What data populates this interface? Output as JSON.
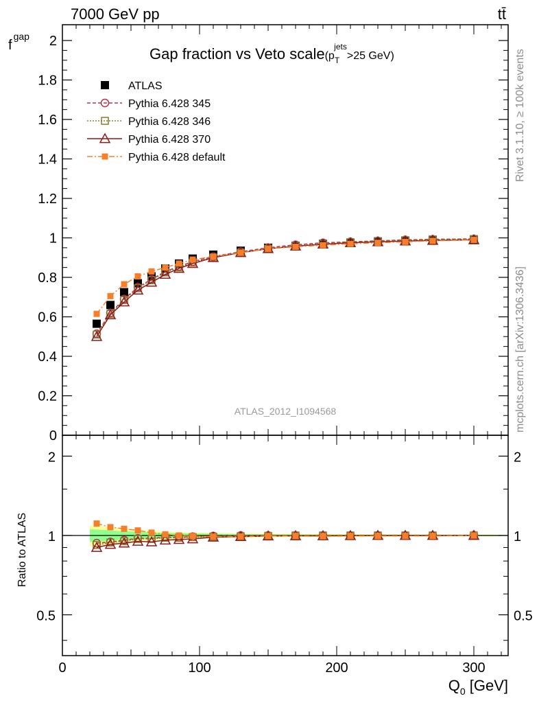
{
  "header": {
    "energy_label": "7000 GeV pp",
    "process_label": "tt̄",
    "rivet_label": "Rivet 3.1.10, ≥ 100k events",
    "mcplots_label": "mcplots.cern.ch [arXiv:1306.3436]",
    "analysis_label": "ATLAS_2012_I1094568"
  },
  "colors": {
    "atlas": "#000000",
    "p345": "#b2314b",
    "p346": "#8b7a2a",
    "p370": "#8b1a1a",
    "pdefault": "#f57f2b",
    "band_inner": "#8fff8f",
    "band_outer": "#ffff99"
  },
  "chart_data": [
    {
      "type": "scatter",
      "title": "Gap fraction vs Veto scale",
      "title_suffix": "(p",
      "title_sub": "T",
      "title_sup": "jets",
      "title_tail": ">25 GeV)",
      "ylabel": "f",
      "ylabel_sub": "gap",
      "xlim": [
        0,
        325
      ],
      "ylim": [
        0,
        2.08
      ],
      "yticks": [
        0,
        0.2,
        0.4,
        0.6,
        0.8,
        1,
        1.2,
        1.4,
        1.6,
        1.8,
        2
      ],
      "ytick_labels": [
        "0",
        "0.2",
        "0.4",
        "0.6",
        "0.8",
        "1",
        "1.2",
        "1.4",
        "1.6",
        "1.8",
        "2"
      ],
      "legend": "top-left",
      "x": [
        25,
        35,
        45,
        55,
        65,
        75,
        85,
        95,
        110,
        130,
        150,
        170,
        190,
        210,
        230,
        250,
        270,
        300
      ],
      "series": [
        {
          "name": "ATLAS",
          "key": "atlas",
          "marker": "square-filled",
          "values": [
            0.565,
            0.66,
            0.725,
            0.77,
            0.805,
            0.845,
            0.87,
            0.895,
            0.915,
            0.935,
            0.95,
            0.96,
            0.97,
            0.975,
            0.98,
            0.985,
            0.99,
            0.99
          ]
        },
        {
          "name": "Pythia 6.428 345",
          "key": "p345",
          "marker": "circle-open",
          "dash": "5,3",
          "values": [
            0.515,
            0.62,
            0.69,
            0.75,
            0.79,
            0.83,
            0.855,
            0.88,
            0.905,
            0.93,
            0.95,
            0.965,
            0.975,
            0.98,
            0.985,
            0.99,
            0.993,
            0.995
          ]
        },
        {
          "name": "Pythia 6.428 346",
          "key": "p346",
          "marker": "square-open",
          "dash": "2,2",
          "values": [
            0.51,
            0.615,
            0.685,
            0.745,
            0.785,
            0.825,
            0.85,
            0.875,
            0.9,
            0.925,
            0.945,
            0.96,
            0.97,
            0.978,
            0.984,
            0.988,
            0.992,
            0.994
          ]
        },
        {
          "name": "Pythia 6.428 370",
          "key": "p370",
          "marker": "triangle-open",
          "dash": "",
          "values": [
            0.5,
            0.61,
            0.675,
            0.735,
            0.775,
            0.815,
            0.845,
            0.87,
            0.9,
            0.925,
            0.945,
            0.958,
            0.968,
            0.975,
            0.98,
            0.984,
            0.987,
            0.99
          ]
        },
        {
          "name": "Pythia 6.428 default",
          "key": "pdefault",
          "marker": "square-filled-small",
          "dash": "8,3,2,3",
          "values": [
            0.615,
            0.705,
            0.765,
            0.805,
            0.83,
            0.85,
            0.87,
            0.89,
            0.905,
            0.925,
            0.945,
            0.955,
            0.963,
            0.97,
            0.975,
            0.98,
            0.985,
            0.99
          ]
        }
      ]
    },
    {
      "type": "scatter",
      "title": "",
      "ylabel": "Ratio to ATLAS",
      "xlabel": "Q",
      "xlabel_sub": "0",
      "xlabel_tail": " [GeV]",
      "xlim": [
        0,
        325
      ],
      "xticks": [
        0,
        100,
        200,
        300
      ],
      "xtick_labels": [
        "0",
        "100",
        "200",
        "300"
      ],
      "ylim": [
        0.35,
        2.4
      ],
      "log_y": true,
      "yticks": [
        0.5,
        1,
        2
      ],
      "ytick_labels": [
        "0.5",
        "1",
        "2"
      ],
      "band_x": [
        20,
        30,
        40,
        50,
        60,
        70,
        80,
        90,
        100,
        120,
        140,
        160,
        180,
        200,
        220,
        240,
        260,
        280,
        320
      ],
      "band_inner": [
        0.055,
        0.05,
        0.04,
        0.035,
        0.03,
        0.025,
        0.022,
        0.02,
        0.018,
        0.014,
        0.012,
        0.01,
        0.009,
        0.008,
        0.007,
        0.006,
        0.006,
        0.005,
        0.005
      ],
      "band_outer": [
        0.09,
        0.08,
        0.065,
        0.055,
        0.045,
        0.038,
        0.032,
        0.028,
        0.025,
        0.02,
        0.017,
        0.015,
        0.013,
        0.012,
        0.011,
        0.01,
        0.009,
        0.008,
        0.008
      ],
      "x": [
        25,
        35,
        45,
        55,
        65,
        75,
        85,
        95,
        110,
        130,
        150,
        170,
        190,
        210,
        230,
        250,
        270,
        300
      ],
      "series": [
        {
          "name": "Pythia 6.428 345",
          "key": "p345",
          "marker": "circle-open",
          "dash": "5,3",
          "values": [
            0.935,
            0.945,
            0.96,
            0.975,
            0.975,
            0.985,
            0.985,
            0.99,
            0.995,
            1.0,
            1.0,
            1.0,
            1.0,
            1.0,
            1.0,
            1.0,
            1.0,
            1.003
          ]
        },
        {
          "name": "Pythia 6.428 346",
          "key": "p346",
          "marker": "square-open",
          "dash": "2,2",
          "values": [
            0.92,
            0.94,
            0.95,
            0.97,
            0.97,
            0.98,
            0.98,
            0.985,
            0.99,
            0.993,
            0.997,
            1.0,
            1.0,
            1.0,
            1.0,
            1.0,
            1.0,
            1.0
          ]
        },
        {
          "name": "Pythia 6.428 370",
          "key": "p370",
          "marker": "triangle-open",
          "dash": "",
          "values": [
            0.9,
            0.925,
            0.935,
            0.95,
            0.945,
            0.96,
            0.965,
            0.97,
            0.985,
            0.99,
            0.995,
            0.997,
            0.997,
            0.998,
            1.0,
            1.0,
            1.0,
            1.0
          ]
        },
        {
          "name": "Pythia 6.428 default",
          "key": "pdefault",
          "marker": "square-filled-small",
          "dash": "8,3,2,3",
          "values": [
            1.11,
            1.075,
            1.06,
            1.045,
            1.025,
            1.01,
            1.0,
            0.995,
            0.99,
            0.99,
            0.995,
            0.995,
            0.993,
            0.995,
            0.995,
            0.995,
            0.995,
            1.0
          ]
        }
      ]
    }
  ]
}
